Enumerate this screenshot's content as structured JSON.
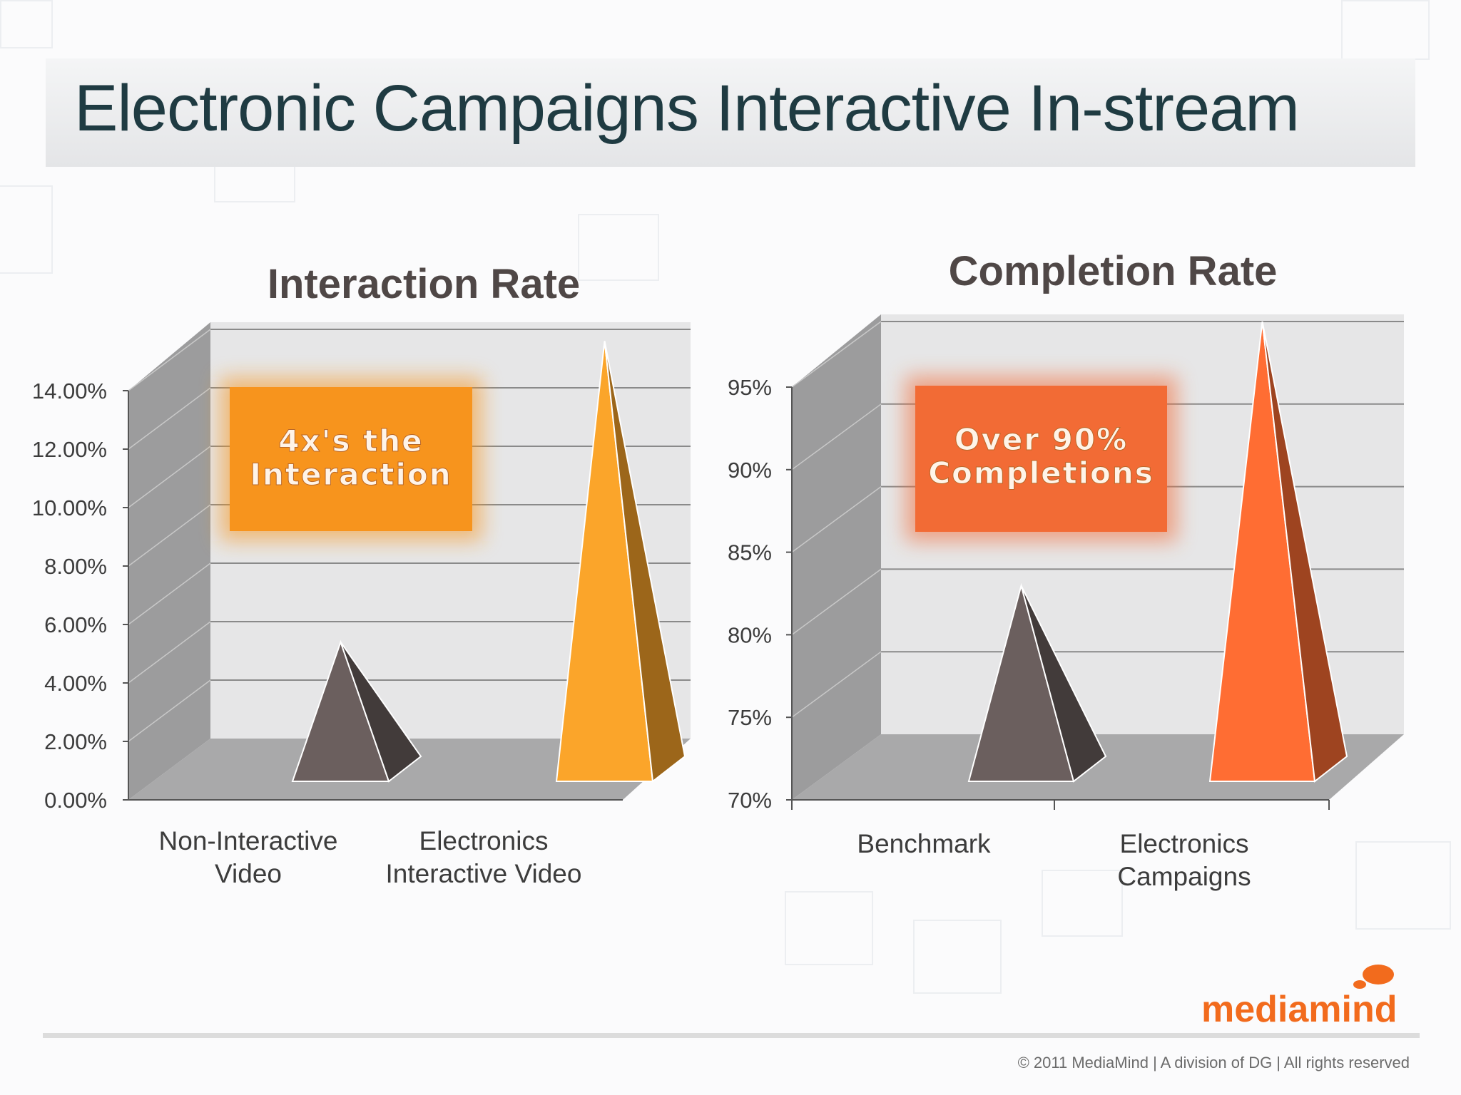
{
  "title": "Electronic Campaigns Interactive In-stream",
  "footer": "© 2011 MediaMind | A division of DG | All rights reserved",
  "logo_text": "mediamind",
  "colors": {
    "title": "#1f3b42",
    "chart_title": "#4f4746",
    "orange": "#f7941d",
    "orange_red": "#f26b35",
    "pyramid_gray": "#6b5f5e"
  },
  "chart_data": [
    {
      "type": "bar",
      "title": "Interaction Rate",
      "categories": [
        "Non-Interactive\nVideo",
        "Electronics\nInteractive Video"
      ],
      "values": [
        0.033,
        0.136
      ],
      "yticks": [
        "0.00%",
        "2.00%",
        "4.00%",
        "6.00%",
        "8.00%",
        "10.00%",
        "12.00%",
        "14.00%"
      ],
      "ylim": [
        0,
        0.14
      ],
      "grid": true,
      "callout": "4x's the\nInteraction",
      "bar_colors": [
        "#6b5f5e",
        "#fba52a"
      ]
    },
    {
      "type": "bar",
      "title": "Completion Rate",
      "categories": [
        "Benchmark",
        "Electronics\nCampaigns"
      ],
      "values": [
        0.79,
        0.95
      ],
      "yticks": [
        "70%",
        "75%",
        "80%",
        "85%",
        "90%",
        "95%"
      ],
      "ylim": [
        0.7,
        0.95
      ],
      "grid": true,
      "callout": "Over 90%\nCompletions",
      "bar_colors": [
        "#6b5f5e",
        "#ff6d33"
      ]
    }
  ]
}
